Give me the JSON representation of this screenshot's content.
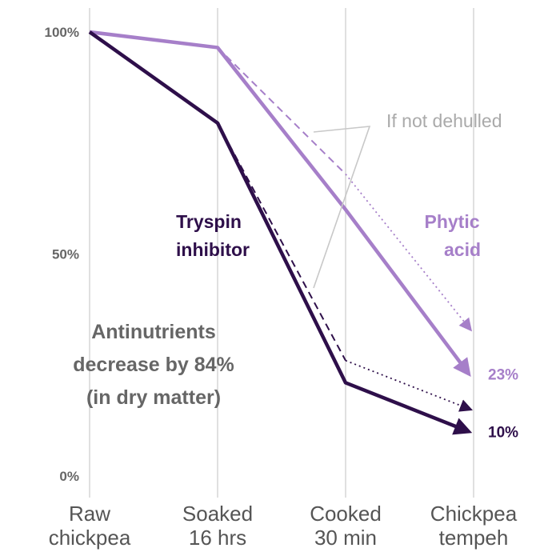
{
  "chart_data": {
    "type": "line",
    "categories": [
      [
        "Raw",
        "chickpea"
      ],
      [
        "Soaked",
        "16 hrs"
      ],
      [
        "Cooked",
        "30 min"
      ],
      [
        "Chickpea",
        "tempeh"
      ]
    ],
    "ylim": [
      0,
      100
    ],
    "yticks": [
      "0%",
      "50%",
      "100%"
    ],
    "grid": "vertical",
    "series": [
      {
        "name": [
          "Phytic",
          "acid"
        ],
        "color": "#a67fc9",
        "values": [
          100,
          96.5,
          60,
          23
        ],
        "end_label": "23%",
        "not_dehulled": [
          96.5,
          68,
          33
        ]
      },
      {
        "name": [
          "Tryspin",
          "inhibitor"
        ],
        "color": "#2e0f4a",
        "values": [
          100,
          79.5,
          21,
          10
        ],
        "end_label": "10%",
        "not_dehulled": [
          79.5,
          26,
          15
        ]
      }
    ],
    "annotations": {
      "not_dehulled": "If not dehulled",
      "summary": [
        "Antinutrients",
        "decrease by 84%",
        "(in dry matter)"
      ]
    }
  }
}
